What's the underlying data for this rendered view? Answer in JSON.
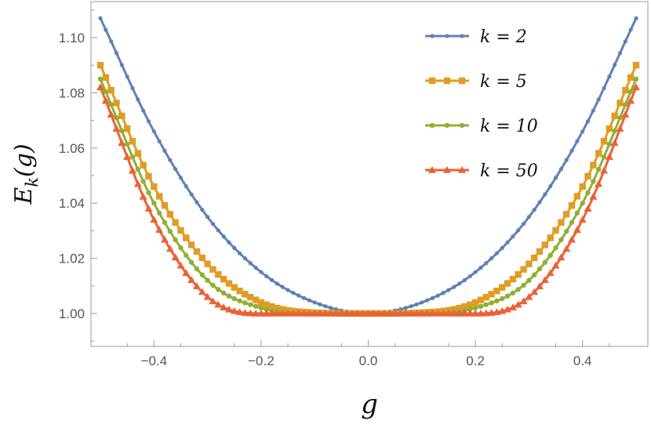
{
  "chart_data": {
    "type": "line",
    "title": "",
    "xlabel": "g",
    "ylabel": "E_k(g)",
    "xlim": [
      -0.5,
      0.5
    ],
    "ylim": [
      0.986,
      1.117
    ],
    "xticks": [
      -0.4,
      -0.2,
      0.0,
      0.2,
      0.4
    ],
    "xtick_labels": [
      "−0.4",
      "−0.2",
      "0.0",
      "0.2",
      "0.4"
    ],
    "yticks": [
      1.0,
      1.02,
      1.04,
      1.06,
      1.08,
      1.1
    ],
    "ytick_labels": [
      "1.00",
      "1.02",
      "1.04",
      "1.06",
      "1.08",
      "1.10"
    ],
    "grid": false,
    "legend_position": "top-right",
    "series": [
      {
        "name": "k = 2",
        "k": 2,
        "color": "#5E81B5",
        "marker": "circle",
        "x": [
          -0.5,
          -0.4,
          -0.3,
          -0.2,
          -0.1,
          0.0,
          0.1,
          0.2,
          0.3,
          0.4,
          0.5
        ],
        "y": [
          1.107,
          1.066,
          1.035,
          1.015,
          1.004,
          1.0,
          1.004,
          1.015,
          1.035,
          1.066,
          1.107
        ]
      },
      {
        "name": "k = 5",
        "k": 5,
        "color": "#E19C24",
        "marker": "square",
        "x": [
          -0.5,
          -0.4,
          -0.3,
          -0.2,
          -0.1,
          0.0,
          0.1,
          0.2,
          0.3,
          0.4,
          0.5
        ],
        "y": [
          1.09,
          1.046,
          1.018,
          1.004,
          1.0003,
          1.0,
          1.0003,
          1.004,
          1.018,
          1.046,
          1.09
        ]
      },
      {
        "name": "k = 10",
        "k": 10,
        "color": "#8FB032",
        "marker": "circle",
        "x": [
          -0.5,
          -0.4,
          -0.3,
          -0.2,
          -0.1,
          0.0,
          0.1,
          0.2,
          0.3,
          0.4,
          0.5
        ],
        "y": [
          1.085,
          1.04,
          1.012,
          1.002,
          1.0,
          1.0,
          1.0,
          1.002,
          1.012,
          1.04,
          1.085
        ]
      },
      {
        "name": "k = 50",
        "k": 50,
        "color": "#EB6235",
        "marker": "triangle",
        "x": [
          -0.5,
          -0.4,
          -0.3,
          -0.2,
          -0.1,
          0.0,
          0.1,
          0.2,
          0.3,
          0.4,
          0.5
        ],
        "y": [
          1.082,
          1.034,
          1.006,
          1.0,
          1.0,
          1.0,
          1.0,
          1.0,
          1.006,
          1.034,
          1.082
        ]
      }
    ]
  }
}
